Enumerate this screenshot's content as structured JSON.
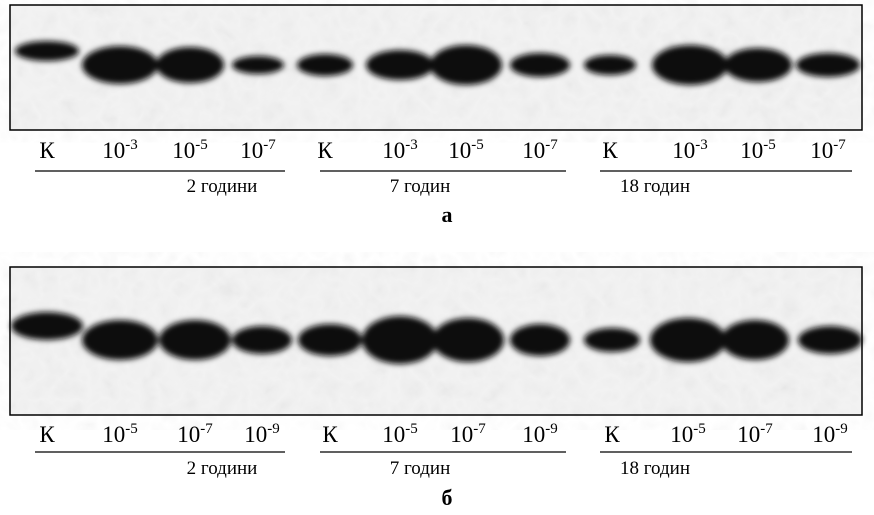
{
  "panels": [
    {
      "label": "а",
      "lanes": [
        {
          "text": "К"
        },
        {
          "base": "10",
          "sup": "-3"
        },
        {
          "base": "10",
          "sup": "-5"
        },
        {
          "base": "10",
          "sup": "-7"
        },
        {
          "text": "К"
        },
        {
          "base": "10",
          "sup": "-3"
        },
        {
          "base": "10",
          "sup": "-5"
        },
        {
          "base": "10",
          "sup": "-7"
        },
        {
          "text": "К"
        },
        {
          "base": "10",
          "sup": "-3"
        },
        {
          "base": "10",
          "sup": "-5"
        },
        {
          "base": "10",
          "sup": "-7"
        }
      ],
      "groups": [
        "2 години",
        "7 годин",
        "18 годин"
      ]
    },
    {
      "label": "б",
      "lanes": [
        {
          "text": "К"
        },
        {
          "base": "10",
          "sup": "-5"
        },
        {
          "base": "10",
          "sup": "-7"
        },
        {
          "base": "10",
          "sup": "-9"
        },
        {
          "text": "К"
        },
        {
          "base": "10",
          "sup": "-5"
        },
        {
          "base": "10",
          "sup": "-7"
        },
        {
          "base": "10",
          "sup": "-9"
        },
        {
          "text": "К"
        },
        {
          "base": "10",
          "sup": "-5"
        },
        {
          "base": "10",
          "sup": "-7"
        },
        {
          "base": "10",
          "sup": "-9"
        }
      ],
      "groups": [
        "2 години",
        "7 годин",
        "18 годин"
      ]
    }
  ]
}
